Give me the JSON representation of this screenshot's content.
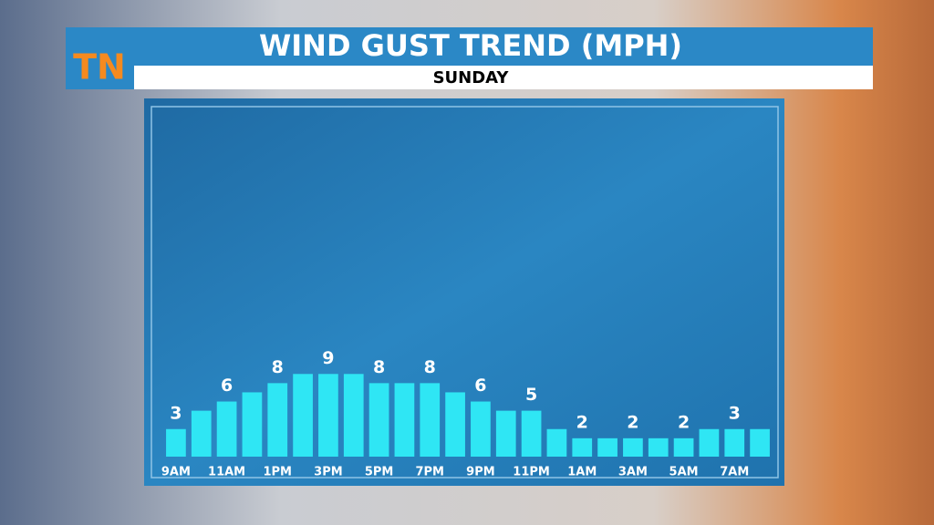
{
  "logo": "TN",
  "chart_data": {
    "type": "bar",
    "title": "WIND GUST TREND (MPH)",
    "subtitle": "SUNDAY",
    "categories": [
      "9AM",
      null,
      "11AM",
      null,
      "1PM",
      null,
      "3PM",
      null,
      "5PM",
      null,
      "7PM",
      null,
      "9PM",
      null,
      "11PM",
      null,
      "1AM",
      null,
      "3AM",
      null,
      "5AM",
      null,
      "7AM",
      null
    ],
    "values": [
      3,
      5,
      6,
      7,
      8,
      9,
      9,
      9,
      8,
      8,
      8,
      7,
      6,
      5,
      5,
      3,
      2,
      2,
      2,
      2,
      2,
      3,
      3,
      3
    ],
    "color": "#2fe6f4",
    "ylim": [
      0,
      38
    ]
  }
}
